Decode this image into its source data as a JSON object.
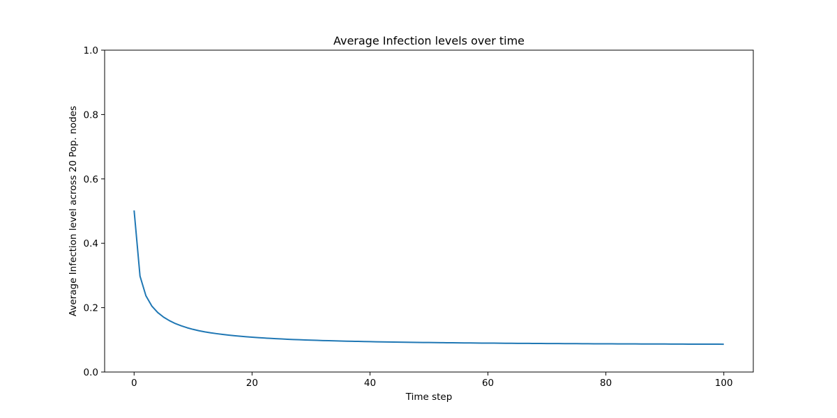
{
  "chart_data": {
    "type": "line",
    "title": "Average Infection levels over time",
    "xlabel": "Time step",
    "ylabel": "Average Infection level across 20 Pop. nodes",
    "xlim": [
      -5,
      105
    ],
    "ylim": [
      0.0,
      1.0
    ],
    "xticks": [
      0,
      20,
      40,
      60,
      80,
      100
    ],
    "xtick_labels": [
      "0",
      "20",
      "40",
      "60",
      "80",
      "100"
    ],
    "yticks": [
      0.0,
      0.2,
      0.4,
      0.6,
      0.8,
      1.0
    ],
    "ytick_labels": [
      "0.0",
      "0.2",
      "0.4",
      "0.6",
      "0.8",
      "1.0"
    ],
    "grid": false,
    "series": [
      {
        "color": "#1f77b4",
        "x": [
          0,
          1,
          2,
          3,
          4,
          5,
          6,
          7,
          8,
          9,
          10,
          11,
          12,
          13,
          14,
          15,
          16,
          17,
          18,
          19,
          20,
          21,
          22,
          23,
          24,
          25,
          26,
          27,
          28,
          29,
          30,
          31,
          32,
          33,
          34,
          35,
          36,
          37,
          38,
          39,
          40,
          41,
          42,
          43,
          44,
          45,
          46,
          47,
          48,
          49,
          50,
          51,
          52,
          53,
          54,
          55,
          56,
          57,
          58,
          59,
          60,
          61,
          62,
          63,
          64,
          65,
          66,
          67,
          68,
          69,
          70,
          71,
          72,
          73,
          74,
          75,
          76,
          77,
          78,
          79,
          80,
          81,
          82,
          83,
          84,
          85,
          86,
          87,
          88,
          89,
          90,
          91,
          92,
          93,
          94,
          95,
          96,
          97,
          98,
          99,
          100
        ],
        "y": [
          0.502,
          0.298,
          0.237,
          0.205,
          0.185,
          0.1705,
          0.1595,
          0.1505,
          0.1435,
          0.1375,
          0.1325,
          0.1283,
          0.1248,
          0.1218,
          0.1192,
          0.1169,
          0.1148,
          0.1129,
          0.1112,
          0.1096,
          0.1082,
          0.1069,
          0.1057,
          0.1046,
          0.1036,
          0.1027,
          0.1018,
          0.101,
          0.1003,
          0.0996,
          0.099,
          0.0984,
          0.0978,
          0.0973,
          0.0968,
          0.0963,
          0.0959,
          0.0955,
          0.0951,
          0.0947,
          0.0943,
          0.094,
          0.0937,
          0.0934,
          0.0931,
          0.0928,
          0.0925,
          0.0923,
          0.092,
          0.0918,
          0.0916,
          0.0914,
          0.0912,
          0.091,
          0.0908,
          0.0906,
          0.0904,
          0.0903,
          0.0901,
          0.0899,
          0.0898,
          0.0897,
          0.0895,
          0.0894,
          0.0893,
          0.0891,
          0.089,
          0.0889,
          0.0888,
          0.0887,
          0.0886,
          0.0885,
          0.0884,
          0.0883,
          0.0882,
          0.0881,
          0.088,
          0.0879,
          0.0878,
          0.0878,
          0.0877,
          0.0876,
          0.0875,
          0.0875,
          0.0874,
          0.0873,
          0.0872,
          0.0872,
          0.0871,
          0.087,
          0.087,
          0.0869,
          0.0869,
          0.0868,
          0.0867,
          0.0867,
          0.0866,
          0.0866,
          0.0865,
          0.0865,
          0.0864
        ]
      }
    ]
  }
}
